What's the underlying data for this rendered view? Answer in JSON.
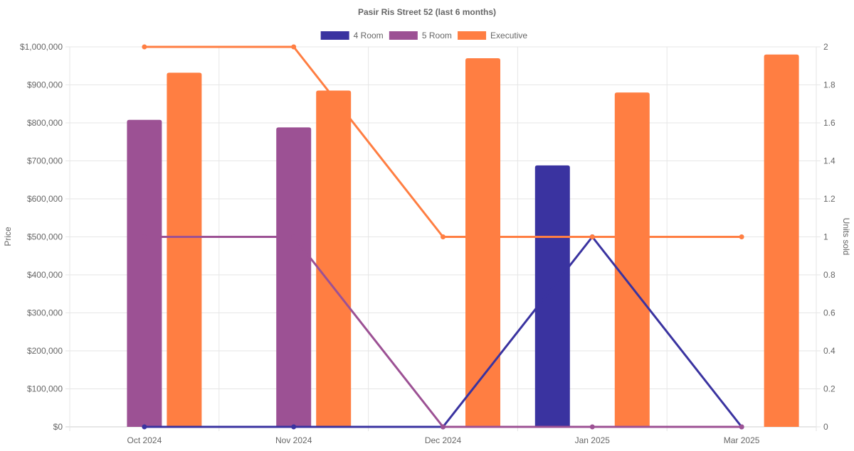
{
  "chart_data": {
    "type": "bar",
    "title": "Pasir Ris Street 52 (last 6 months)",
    "categories": [
      "Oct 2024",
      "Nov 2024",
      "Dec 2024",
      "Jan 2025",
      "Mar 2025"
    ],
    "y_left": {
      "label": "Price",
      "range": [
        0,
        1000000
      ],
      "ticks": [
        "$0",
        "$100,000",
        "$200,000",
        "$300,000",
        "$400,000",
        "$500,000",
        "$600,000",
        "$700,000",
        "$800,000",
        "$900,000",
        "$1,000,000"
      ]
    },
    "y_right": {
      "label": "Units sold",
      "range": [
        0,
        2
      ],
      "ticks": [
        "0",
        "0.2",
        "0.4",
        "0.6",
        "0.8",
        "1",
        "1.2",
        "1.4",
        "1.6",
        "1.8",
        "2"
      ]
    },
    "grid": true,
    "legend_position": "top",
    "series": [
      {
        "name": "4 Room",
        "color": "#3a33a0",
        "price": [
          null,
          null,
          null,
          688000,
          null
        ],
        "units_sold": [
          0,
          0,
          0,
          1,
          0
        ]
      },
      {
        "name": "5 Room",
        "color": "#9c5194",
        "price": [
          808000,
          788000,
          null,
          null,
          null
        ],
        "units_sold": [
          1,
          1,
          0,
          0,
          0
        ]
      },
      {
        "name": "Executive",
        "color": "#ff7e42",
        "price": [
          932000,
          885000,
          970000,
          880000,
          980000
        ],
        "units_sold": [
          2,
          2,
          1,
          1,
          1
        ]
      }
    ]
  }
}
